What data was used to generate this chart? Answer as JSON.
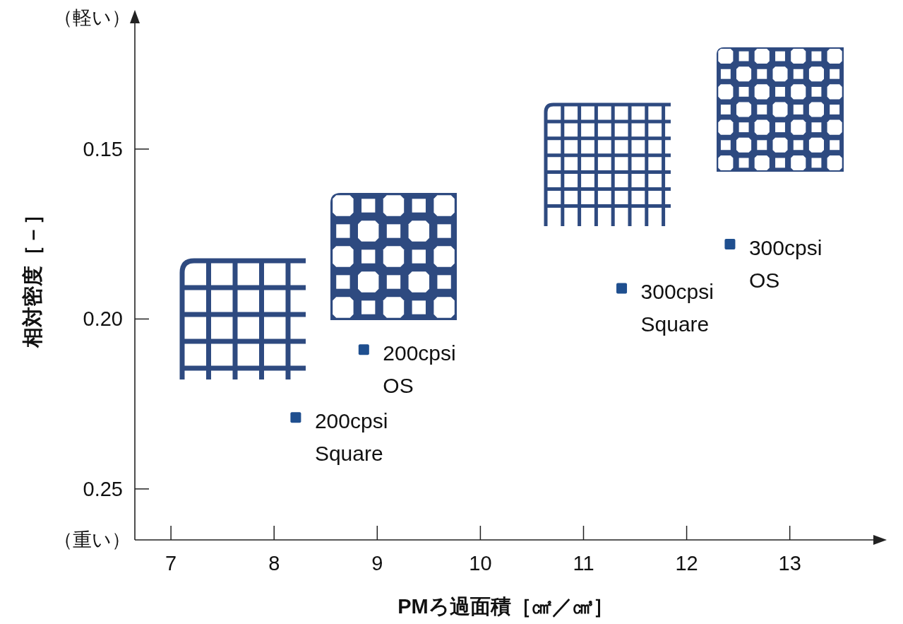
{
  "chart_data": {
    "type": "scatter",
    "xlabel": "PMろ過面積［㎠／㎤］",
    "ylabel": "相対密度［－］",
    "annotations": [
      "（軽い）",
      "（重い）"
    ],
    "xlim": [
      6.65,
      13.81
    ],
    "xticks": [
      7,
      8,
      9,
      10,
      11,
      12,
      13
    ],
    "ylim": [
      0.265,
      0.113
    ],
    "yticks": [
      0.15,
      {
        "value": 0.2,
        "label": "0.20"
      },
      0.25
    ],
    "marker": "square",
    "series": [
      {
        "name": "200cpsi Square",
        "color": "#1f4f8f",
        "x": [
          8.21
        ],
        "values": [
          0.229
        ]
      },
      {
        "name": "200cpsi OS",
        "color": "#1f4f8f",
        "x": [
          8.87
        ],
        "values": [
          0.209
        ]
      },
      {
        "name": "300cpsi Square",
        "color": "#1f4f8f",
        "x": [
          11.37
        ],
        "values": [
          0.191
        ]
      },
      {
        "name": "300cpsi OS",
        "color": "#1f4f8f",
        "x": [
          12.42
        ],
        "values": [
          0.178
        ]
      }
    ]
  }
}
